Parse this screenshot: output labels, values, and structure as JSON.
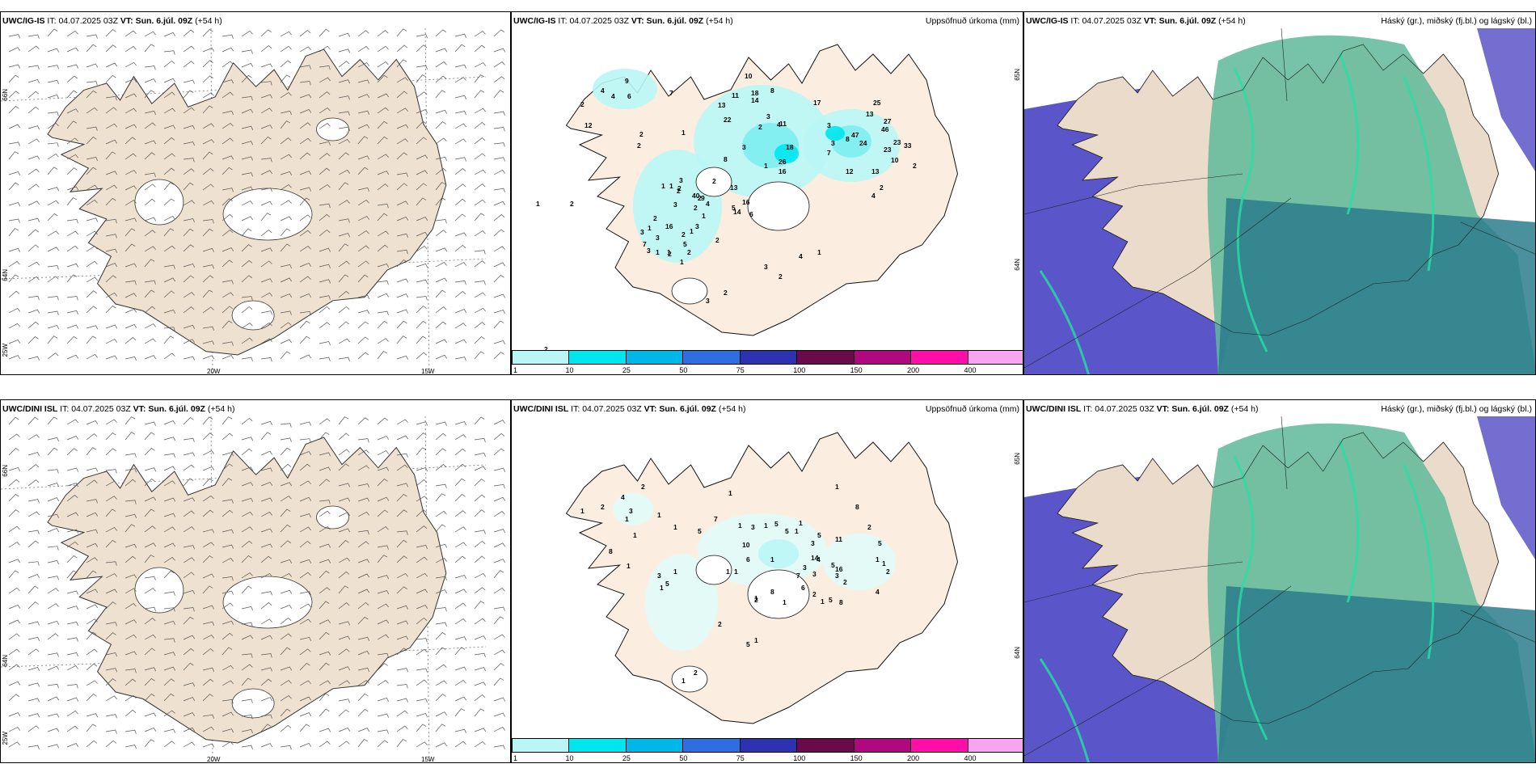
{
  "rows": [
    {
      "model": "UWC/IG-IS",
      "it_label": "IT:",
      "it_value": "04.07.2025 03Z",
      "vt_label": "VT:",
      "vt_value": "Sun. 6.júl. 09Z",
      "lead": "(+54 h)"
    },
    {
      "model": "UWC/DINI ISL",
      "it_label": "IT:",
      "it_value": "04.07.2025 03Z",
      "vt_label": "VT:",
      "vt_value": "Sun. 6.júl. 09Z",
      "lead": "(+54 h)"
    }
  ],
  "precip_title": "Uppsöfnuð úrkoma (mm)",
  "cloud_title": "Háský (gr.), miðský (fj.bl.) og lágský (bl.)",
  "wind_axes": {
    "lat_top": "66N",
    "lat_mid": "64N",
    "lon_left": "25W",
    "lon_mid": "20W",
    "lon_right": "15W",
    "top_lon": "65N"
  },
  "colorbar": {
    "labels": [
      "1",
      "10",
      "25",
      "50",
      "75",
      "100",
      "150",
      "200",
      "400"
    ],
    "colors": [
      "#b9f6f5",
      "#00e5ee",
      "#00b7e8",
      "#2f6de0",
      "#2c32b0",
      "#6a0a4b",
      "#b0097f",
      "#ff0fa8",
      "#f6a6f1"
    ]
  },
  "precip_values_top": [
    "9",
    "4",
    "2",
    "4",
    "6",
    "12",
    "2",
    "2",
    "7",
    "13",
    "1",
    "10",
    "11",
    "18",
    "8",
    "22",
    "3",
    "2",
    "4",
    "8",
    "11",
    "18",
    "17",
    "25",
    "3",
    "46",
    "7",
    "33",
    "13",
    "13",
    "12",
    "16",
    "3",
    "27",
    "1",
    "10",
    "14",
    "3",
    "26",
    "23",
    "8",
    "47",
    "24",
    "23",
    "2",
    "2",
    "2",
    "4",
    "13",
    "5",
    "6",
    "16",
    "3",
    "1",
    "1",
    "2",
    "3",
    "9",
    "40",
    "2",
    "4",
    "14",
    "1",
    "2",
    "2",
    "3",
    "16",
    "2",
    "1",
    "2",
    "5",
    "2",
    "1",
    "7",
    "3",
    "3",
    "3",
    "1",
    "2",
    "1",
    "2",
    "1",
    "3",
    "2",
    "3",
    "2",
    "4",
    "1",
    "2",
    "1",
    "2"
  ],
  "precip_values_bottom": [
    "2",
    "4",
    "2",
    "1",
    "3",
    "1",
    "1",
    "1",
    "1",
    "8",
    "1",
    "5",
    "7",
    "1",
    "1",
    "3",
    "1",
    "5",
    "5",
    "10",
    "6",
    "1",
    "1",
    "3",
    "5",
    "1",
    "8",
    "11",
    "1",
    "5",
    "3",
    "14",
    "5",
    "4",
    "3",
    "6",
    "1",
    "1",
    "16",
    "2",
    "1",
    "2",
    "1",
    "8",
    "7",
    "3",
    "4",
    "2",
    "8",
    "5",
    "2",
    "1",
    "2",
    "1",
    "1",
    "1",
    "3",
    "1",
    "5",
    "2",
    "5",
    "1",
    "2",
    "1"
  ]
}
